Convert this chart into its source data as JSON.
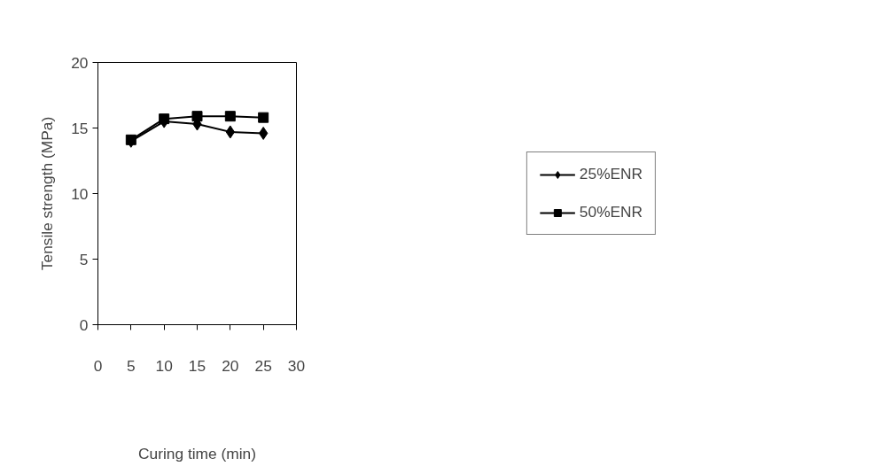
{
  "chart_data": {
    "type": "line",
    "xlabel": "Curing time (min)",
    "ylabel": "Tensile strength (MPa)",
    "x": [
      5,
      10,
      15,
      20,
      25
    ],
    "series": [
      {
        "name": "25%ENR",
        "color": "#000000",
        "marker": "diamond",
        "values": [
          14.0,
          15.5,
          15.3,
          14.7,
          14.6
        ]
      },
      {
        "name": "50%ENR",
        "color": "#000000",
        "marker": "square",
        "values": [
          14.1,
          15.7,
          15.9,
          15.9,
          15.8
        ]
      }
    ],
    "xlim": [
      0,
      30
    ],
    "xticks": [
      0,
      5,
      10,
      15,
      20,
      25,
      30
    ],
    "ylim": [
      0,
      20
    ],
    "yticks": [
      0,
      5,
      10,
      15,
      20
    ],
    "grid": false,
    "legend": "right",
    "line_style": "solid"
  }
}
